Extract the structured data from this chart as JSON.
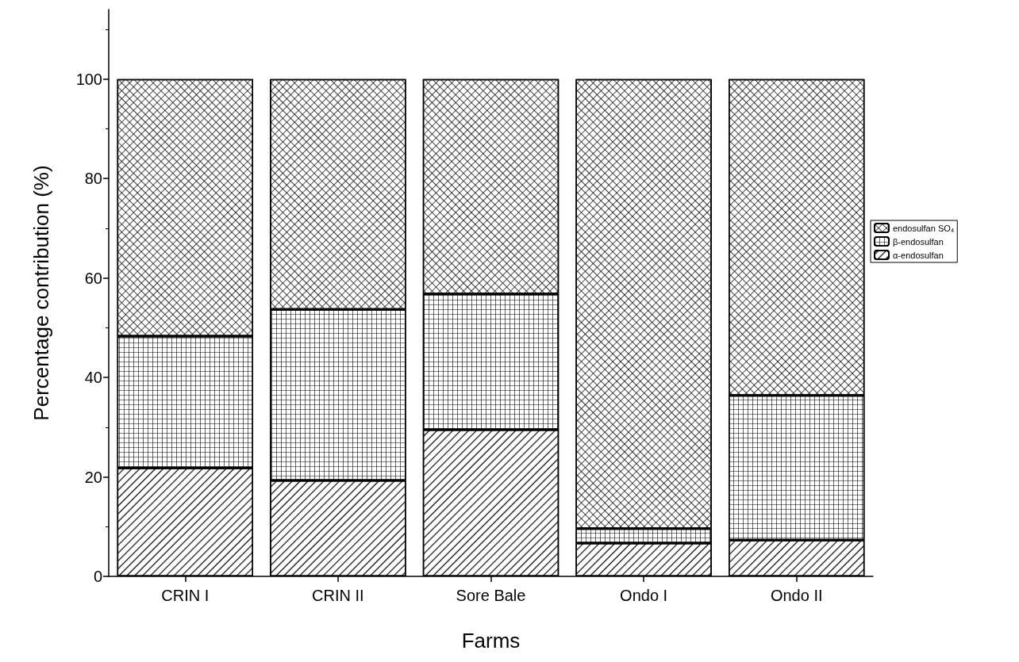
{
  "chart_data": {
    "type": "bar",
    "stacked": true,
    "xlabel": "Farms",
    "ylabel": "Percentage contribution (%)",
    "categories": [
      "CRIN I",
      "CRIN II",
      "Sore Bale",
      "Ondo I",
      "Ondo II"
    ],
    "series": [
      {
        "name": "α-endosulfan",
        "color": "#ffffff",
        "values": [
          21.8,
          19.3,
          29.5,
          6.7,
          7.3
        ]
      },
      {
        "name": "β-endosulfan",
        "color": "#ffffff",
        "values": [
          26.5,
          34.4,
          27.3,
          2.9,
          29.1
        ]
      },
      {
        "name": "endosulfan SO₄",
        "color": "#ffffff",
        "values": [
          51.7,
          46.3,
          43.2,
          90.4,
          63.6
        ]
      }
    ],
    "ylim": [
      0,
      114
    ],
    "yticks": [
      0,
      20,
      40,
      60,
      80,
      100
    ],
    "grid": false,
    "legend": "right"
  }
}
